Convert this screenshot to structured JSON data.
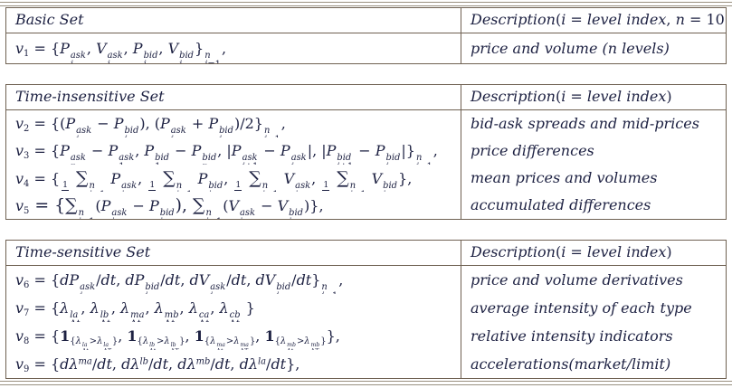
{
  "colors": {
    "border": "#6f6152",
    "outer_rule": "#9a9181",
    "text": "#1d2142",
    "background": "#ffffff"
  },
  "tables": [
    {
      "set_name": "Basic Set",
      "description_header": "Description(%{i} = %{level index}, %{n} = 10)",
      "rows": [
        {
          "formula": "v_{1} = {P@{ask}{i}, V@{ask}{i}, P@{bid}{i}, V@{bid}{i}}@{n}{i=1},",
          "description": "price and volume (n levels)"
        }
      ]
    },
    {
      "set_name": "Time-insensitive Set",
      "description_header": "Description(%{i} = %{level index})",
      "rows": [
        {
          "formula": "v_{2} = {(P@{ask}{i} − P@{bid}{i}), (P@{ask}{i} + P@{bid}{i})/2}@{n}{i=1},",
          "description": "bid-ask spreads and mid-prices"
        },
        {
          "formula": "v_{3} = {P@{ask}{n} − P@{ask}{1}, P@{bid}{1} − P@{bid}{n}, |P@{ask}{i+1} − P@{ask}{i}|, |P@{bid}{i+1} − P@{bid}{i}|}@{n}{i=1},",
          "description": "price differences"
        },
        {
          "formula": "v_{4} = {#{1}{n} ∑@{n}{i=1} P@{ask}{i}, #{1}{n} ∑@{n}{i=1} P@{bid}{i}, #{1}{n} ∑@{n}{i=1} V@{ask}{i}, #{1}{n} ∑@{n}{i=1} V@{bid}{i}},",
          "description": "mean prices and volumes"
        },
        {
          "formula": "v_{5} = {∑@{n}{i=1}(P@{ask}{i} − P@{bid}{i}), ∑@{n}{i=1}(V@{ask}{i} − V@{bid}{i})},",
          "description": "accumulated differences"
        }
      ]
    },
    {
      "set_name": "Time-sensitive Set",
      "description_header": "Description(%{i} = %{level index})",
      "rows": [
        {
          "formula": "v_{6} = {dP@{ask}{i}/dt, dP@{bid}{i}/dt, dV@{ask}{i}/dt, dV@{bid}{i}/dt}@{n}{i=1},",
          "description": "price and volume derivatives"
        },
        {
          "formula": "v_{7} = {λ@{la}{Δt}, λ@{lb}{Δt}, λ@{ma}{Δt}, λ@{mb}{Δt}, λ@{ca}{Δt}, λ@{cb}{Δt} }",
          "description": "average intensity of each type"
        },
        {
          "formula": "v_{8} = {${1}_{{λ@{la}{Δt}>λ@{la}{ΔT}}}, ${1}_{{λ@{lb}{Δt}>λ@{lb}{ΔT}}}, ${1}_{{λ@{ma}{Δt}>λ@{ma}{ΔT}}}, ${1}_{{λ@{mb}{Δt}>λ@{mb}{ΔT}}}},",
          "description": "relative intensity indicators"
        },
        {
          "formula": "v_{9} = {dλ^{ma}/dt, dλ^{lb}/dt, dλ^{mb}/dt, dλ^{la}/dt},",
          "description": "accelerations(market/limit)"
        }
      ]
    }
  ]
}
